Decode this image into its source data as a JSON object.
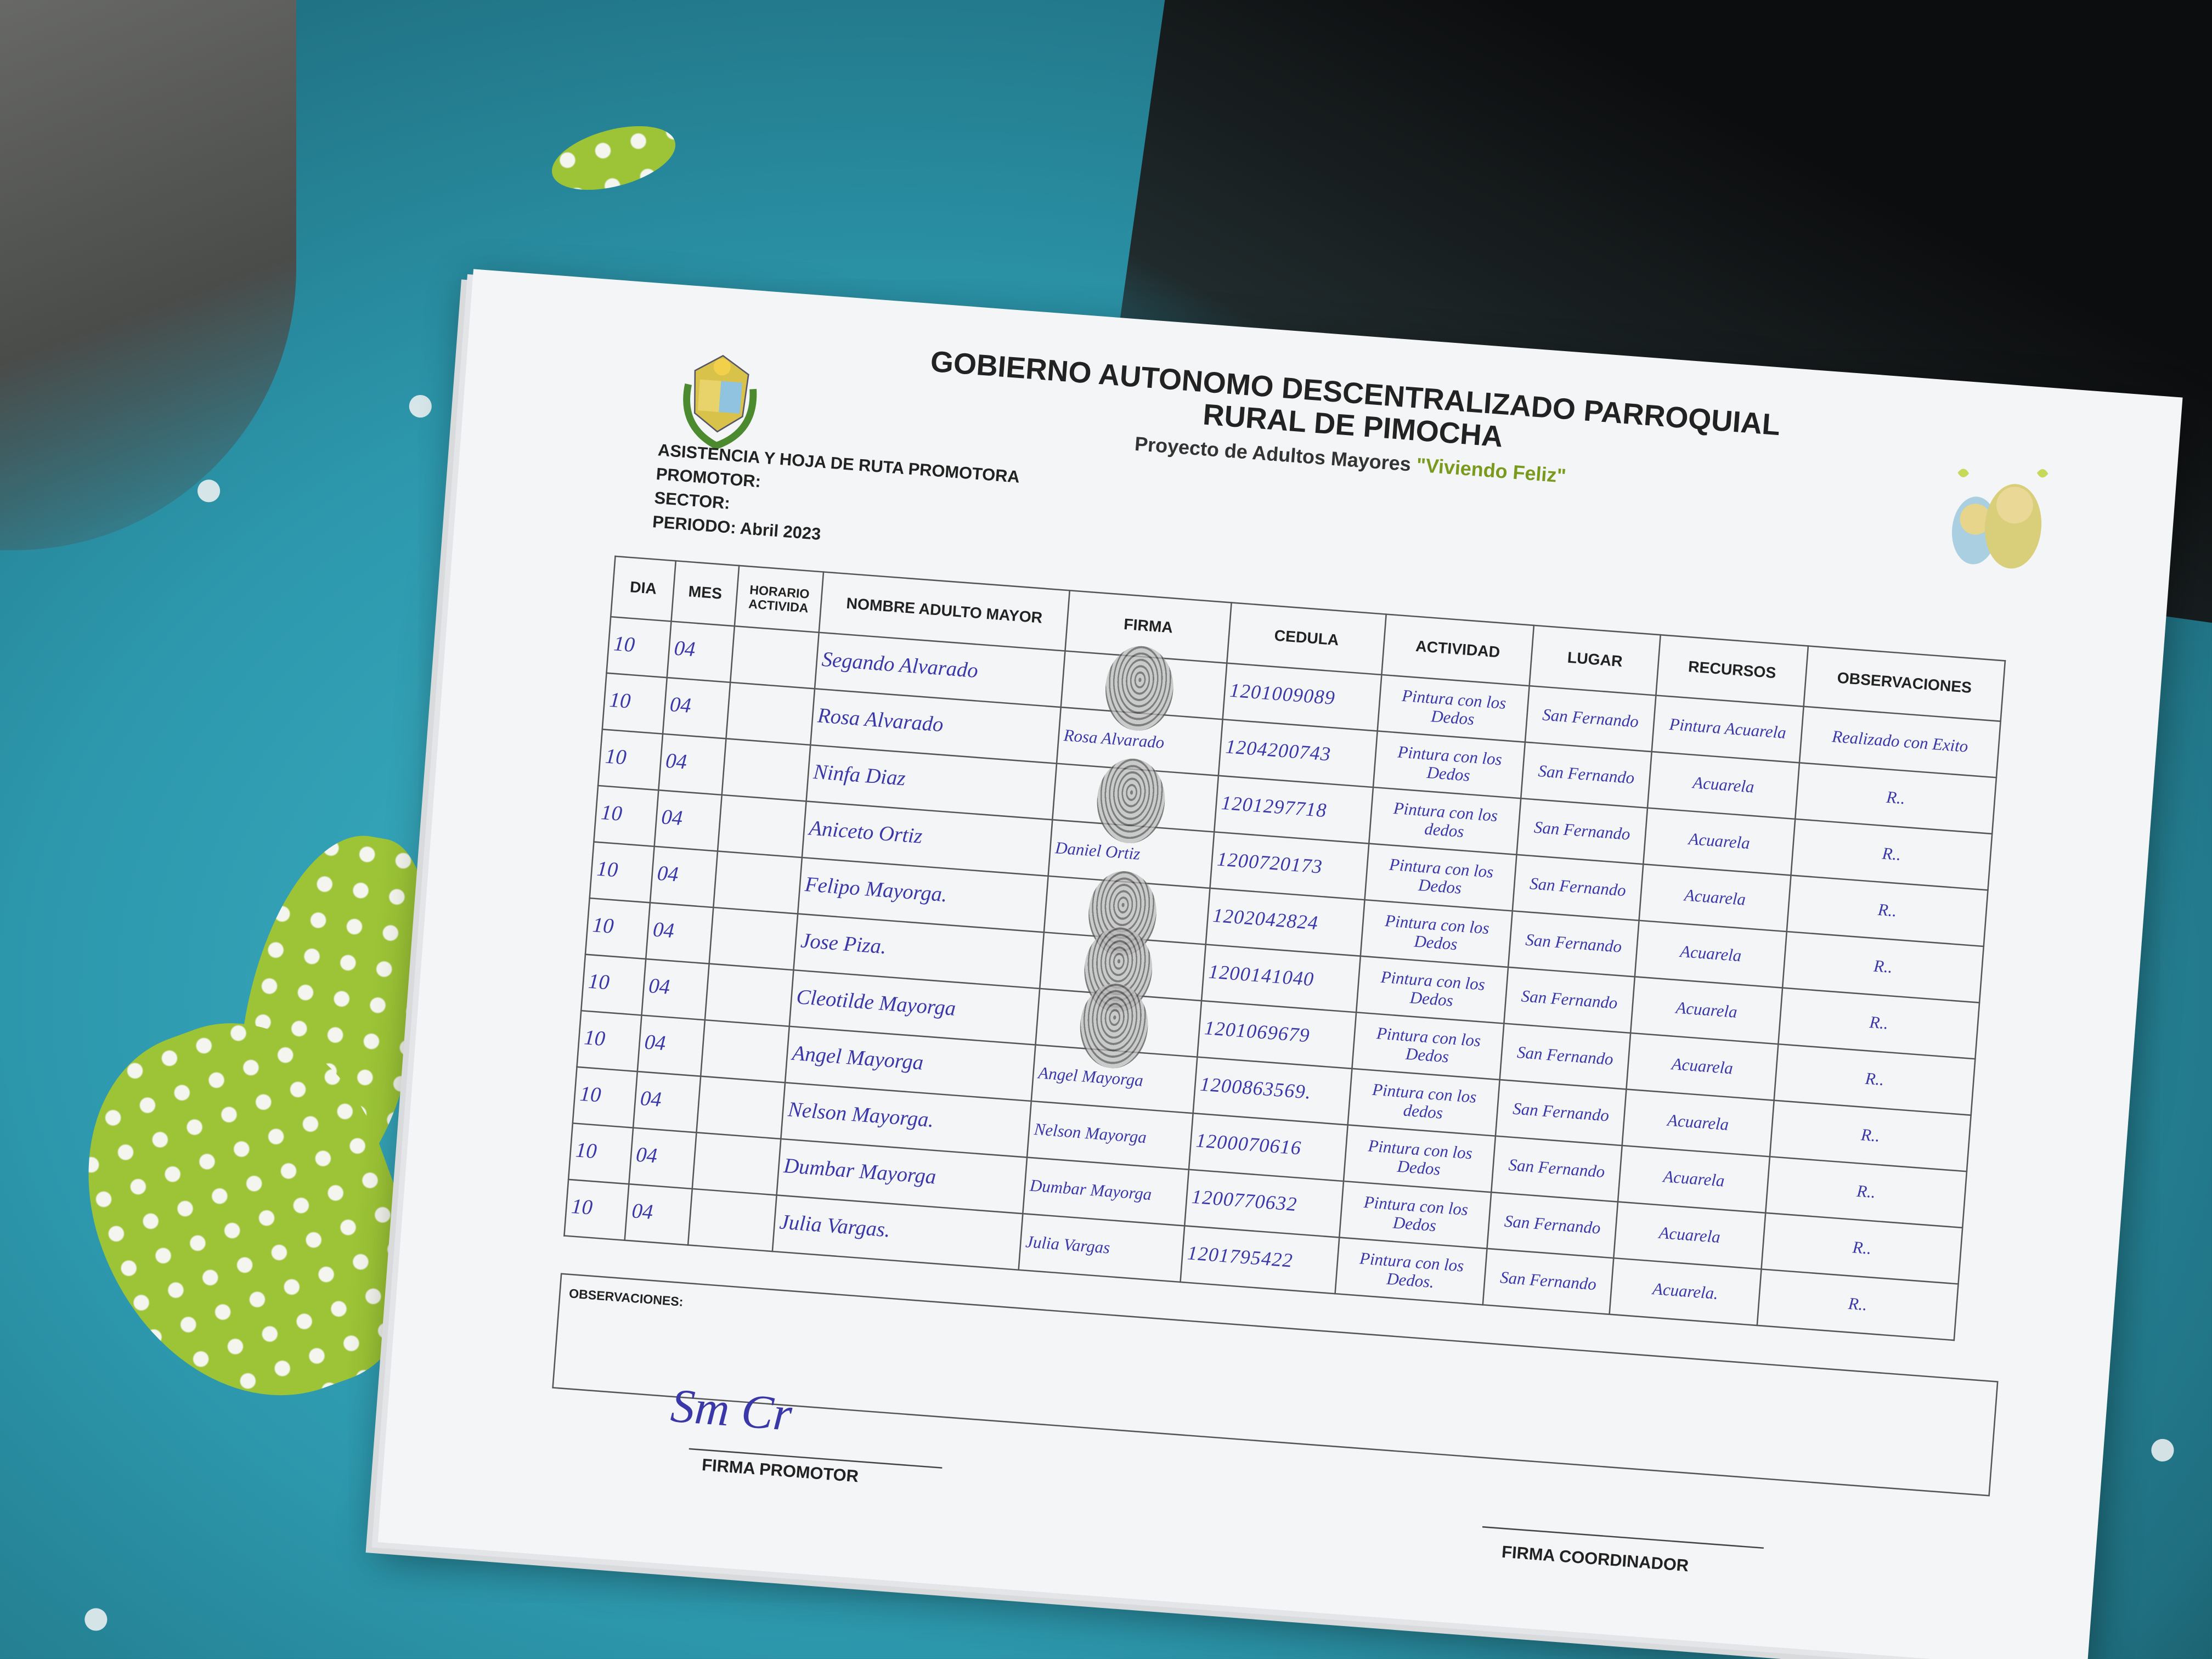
{
  "header": {
    "title_line1": "GOBIERNO AUTONOMO DESCENTRALIZADO PARROQUIAL",
    "title_line2": "RURAL DE PIMOCHA",
    "subtitle_prefix": "Proyecto de Adultos Mayores ",
    "subtitle_highlight": "\"Viviendo Feliz\"",
    "logo_text": "GOBIERNO PARROQUIAL PIMOCHA",
    "highlight_color": "#7a9a1e"
  },
  "meta": {
    "form_title": "ASISTENCIA Y HOJA DE RUTA PROMOTORA",
    "promotor_label": "PROMOTOR:",
    "sector_label": "SECTOR:",
    "periodo_label": "PERIODO: Abril 2023"
  },
  "table": {
    "columns": [
      "DIA",
      "MES",
      "HORARIO ACTIVIDA",
      "NOMBRE ADULTO MAYOR",
      "FIRMA",
      "CEDULA",
      "ACTIVIDAD",
      "LUGAR",
      "RECURSOS",
      "OBSERVACIONES"
    ],
    "rows": [
      {
        "dia": "10",
        "mes": "04",
        "horario": "",
        "nombre": "Segando Alvarado",
        "firma": "",
        "firma_type": "fingerprint",
        "cedula": "1201009089",
        "actividad": "Pintura con los Dedos",
        "lugar": "San Fernando",
        "recursos": "Pintura Acuarela",
        "observaciones": "Realizado con Exito"
      },
      {
        "dia": "10",
        "mes": "04",
        "horario": "",
        "nombre": "Rosa Alvarado",
        "firma": "Rosa Alvarado",
        "firma_type": "signature",
        "cedula": "1204200743",
        "actividad": "Pintura con los Dedos",
        "lugar": "San Fernando",
        "recursos": "Acuarela",
        "observaciones": "R.."
      },
      {
        "dia": "10",
        "mes": "04",
        "horario": "",
        "nombre": "Ninfa Diaz",
        "firma": "",
        "firma_type": "fingerprint",
        "cedula": "1201297718",
        "actividad": "Pintura con los dedos",
        "lugar": "San Fernando",
        "recursos": "Acuarela",
        "observaciones": "R.."
      },
      {
        "dia": "10",
        "mes": "04",
        "horario": "",
        "nombre": "Aniceto Ortiz",
        "firma": "Daniel Ortiz",
        "firma_type": "signature",
        "cedula": "1200720173",
        "actividad": "Pintura con los Dedos",
        "lugar": "San Fernando",
        "recursos": "Acuarela",
        "observaciones": "R.."
      },
      {
        "dia": "10",
        "mes": "04",
        "horario": "",
        "nombre": "Felipo Mayorga.",
        "firma": "",
        "firma_type": "fingerprint",
        "cedula": "1202042824",
        "actividad": "Pintura con los Dedos",
        "lugar": "San Fernando",
        "recursos": "Acuarela",
        "observaciones": "R.."
      },
      {
        "dia": "10",
        "mes": "04",
        "horario": "",
        "nombre": "Jose Piza.",
        "firma": "",
        "firma_type": "fingerprint",
        "cedula": "1200141040",
        "actividad": "Pintura con los Dedos",
        "lugar": "San Fernando",
        "recursos": "Acuarela",
        "observaciones": "R.."
      },
      {
        "dia": "10",
        "mes": "04",
        "horario": "",
        "nombre": "Cleotilde Mayorga",
        "firma": "",
        "firma_type": "fingerprint",
        "cedula": "1201069679",
        "actividad": "Pintura con los Dedos",
        "lugar": "San Fernando",
        "recursos": "Acuarela",
        "observaciones": "R.."
      },
      {
        "dia": "10",
        "mes": "04",
        "horario": "",
        "nombre": "Angel Mayorga",
        "firma": "Angel Mayorga",
        "firma_type": "signature",
        "cedula": "1200863569.",
        "actividad": "Pintura con los dedos",
        "lugar": "San Fernando",
        "recursos": "Acuarela",
        "observaciones": "R.."
      },
      {
        "dia": "10",
        "mes": "04",
        "horario": "",
        "nombre": "Nelson Mayorga.",
        "firma": "Nelson Mayorga",
        "firma_type": "signature",
        "cedula": "1200070616",
        "actividad": "Pintura con los Dedos",
        "lugar": "San Fernando",
        "recursos": "Acuarela",
        "observaciones": "R.."
      },
      {
        "dia": "10",
        "mes": "04",
        "horario": "",
        "nombre": "Dumbar Mayorga",
        "firma": "Dumbar Mayorga",
        "firma_type": "signature",
        "cedula": "1200770632",
        "actividad": "Pintura con los Dedos",
        "lugar": "San Fernando",
        "recursos": "Acuarela",
        "observaciones": "R.."
      },
      {
        "dia": "10",
        "mes": "04",
        "horario": "",
        "nombre": "Julia Vargas.",
        "firma": "Julia Vargas",
        "firma_type": "signature",
        "cedula": "1201795422",
        "actividad": "Pintura con los Dedos.",
        "lugar": "San Fernando",
        "recursos": "Acuarela.",
        "observaciones": "R.."
      }
    ]
  },
  "footer": {
    "observaciones_label": "OBSERVACIONES:",
    "firma_promotor_label": "FIRMA PROMOTOR",
    "firma_coordinador_label": "FIRMA COORDINADOR",
    "promotor_signature": "Sm Cr"
  },
  "colors": {
    "ink": "#3a37a8",
    "fabric": "#2d98ad",
    "paper": "#f4f5f6"
  }
}
